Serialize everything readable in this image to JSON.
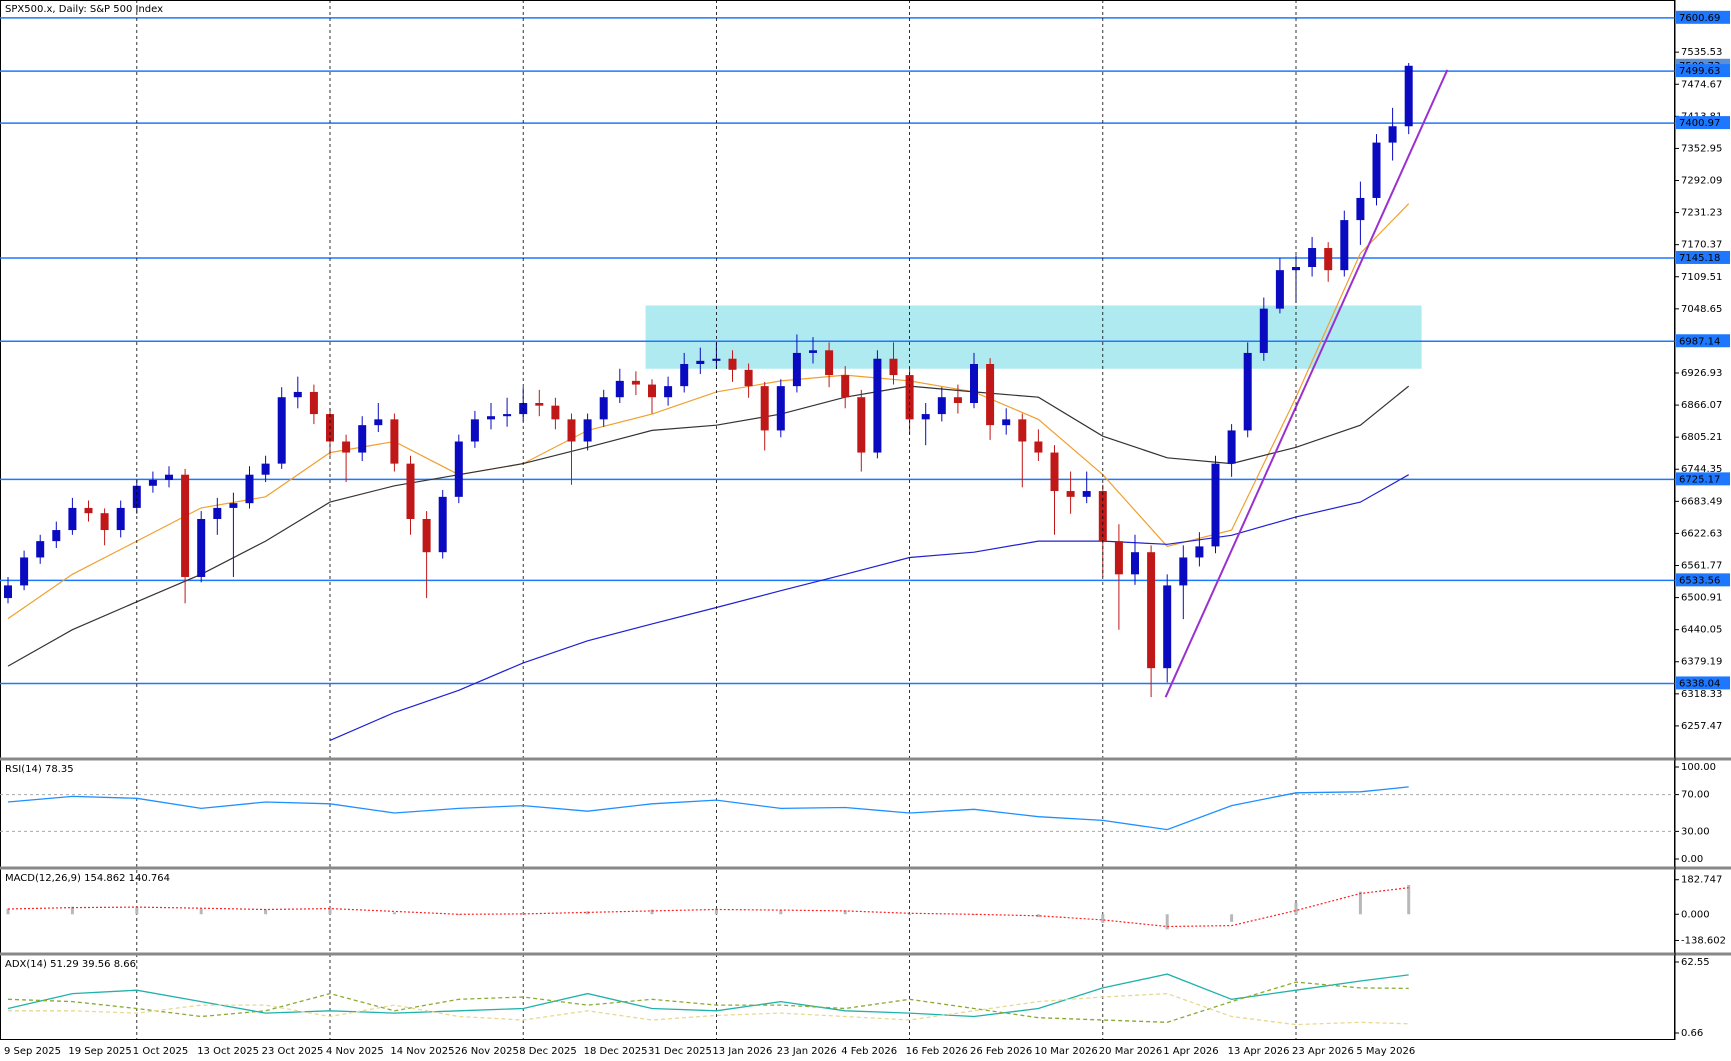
{
  "chart_data": [
    {
      "type": "candlestick",
      "title": "SPX500.x, Daily:  S&P 500 Index",
      "categories": [
        "9 Sep 2025",
        null,
        null,
        null,
        "19 Sep 2025",
        null,
        null,
        null,
        "1 Oct 2025",
        null,
        null,
        null,
        "13 Oct 2025",
        null,
        null,
        null,
        "23 Oct 2025",
        null,
        null,
        null,
        "4 Nov 2025",
        null,
        null,
        null,
        "14 Nov 2025",
        null,
        null,
        null,
        "26 Nov 2025",
        null,
        null,
        null,
        "8 Dec 2025",
        null,
        null,
        null,
        "18 Dec 2025",
        null,
        null,
        null,
        "31 Dec 2025",
        null,
        null,
        null,
        "13 Jan 2026",
        null,
        null,
        null,
        "23 Jan 2026",
        null,
        null,
        null,
        "4 Feb 2026",
        null,
        null,
        null,
        "16 Feb 2026",
        null,
        null,
        null,
        "26 Feb 2026",
        null,
        null,
        null,
        "10 Mar 2026",
        null,
        null,
        null,
        "20 Mar 2026",
        null,
        null,
        null,
        "1 Apr 2026",
        null,
        null,
        null,
        "13 Apr 2026",
        null,
        null,
        null,
        "23 Apr 2026",
        null,
        null,
        null,
        "5 May 2026",
        null,
        null,
        null
      ],
      "ohlc": [
        [
          6500,
          6540,
          6490,
          6524
        ],
        [
          6524,
          6590,
          6515,
          6577
        ],
        [
          6577,
          6620,
          6565,
          6608
        ],
        [
          6608,
          6645,
          6595,
          6629
        ],
        [
          6629,
          6690,
          6620,
          6671
        ],
        [
          6671,
          6685,
          6645,
          6661
        ],
        [
          6661,
          6670,
          6600,
          6629
        ],
        [
          6629,
          6685,
          6615,
          6671
        ],
        [
          6671,
          6725,
          6660,
          6713
        ],
        [
          6713,
          6740,
          6700,
          6724
        ],
        [
          6724,
          6750,
          6710,
          6734
        ],
        [
          6734,
          6745,
          6490,
          6540
        ],
        [
          6540,
          6665,
          6530,
          6650
        ],
        [
          6650,
          6690,
          6620,
          6671
        ],
        [
          6671,
          6700,
          6540,
          6680
        ],
        [
          6680,
          6750,
          6670,
          6734
        ],
        [
          6734,
          6770,
          6720,
          6755
        ],
        [
          6755,
          6900,
          6745,
          6881
        ],
        [
          6881,
          6920,
          6860,
          6891
        ],
        [
          6891,
          6905,
          6830,
          6849
        ],
        [
          6849,
          6860,
          6770,
          6797
        ],
        [
          6797,
          6810,
          6720,
          6776
        ],
        [
          6776,
          6845,
          6760,
          6828
        ],
        [
          6828,
          6870,
          6815,
          6839
        ],
        [
          6839,
          6850,
          6740,
          6755
        ],
        [
          6755,
          6770,
          6620,
          6650
        ],
        [
          6650,
          6665,
          6500,
          6587
        ],
        [
          6587,
          6705,
          6575,
          6692
        ],
        [
          6692,
          6810,
          6680,
          6797
        ],
        [
          6797,
          6855,
          6785,
          6839
        ],
        [
          6839,
          6870,
          6820,
          6845
        ],
        [
          6845,
          6880,
          6825,
          6849
        ],
        [
          6849,
          6900,
          6835,
          6870
        ],
        [
          6870,
          6895,
          6845,
          6865
        ],
        [
          6865,
          6880,
          6820,
          6839
        ],
        [
          6839,
          6850,
          6715,
          6797
        ],
        [
          6797,
          6850,
          6780,
          6839
        ],
        [
          6839,
          6895,
          6825,
          6881
        ],
        [
          6881,
          6935,
          6870,
          6912
        ],
        [
          6912,
          6930,
          6885,
          6905
        ],
        [
          6905,
          6915,
          6850,
          6881
        ],
        [
          6881,
          6920,
          6865,
          6902
        ],
        [
          6902,
          6965,
          6890,
          6944
        ],
        [
          6944,
          6975,
          6925,
          6950
        ],
        [
          6950,
          6985,
          6935,
          6954
        ],
        [
          6954,
          6970,
          6910,
          6933
        ],
        [
          6933,
          6945,
          6880,
          6902
        ],
        [
          6902,
          6910,
          6780,
          6818
        ],
        [
          6818,
          6915,
          6805,
          6902
        ],
        [
          6902,
          7000,
          6890,
          6965
        ],
        [
          6965,
          6995,
          6945,
          6970
        ],
        [
          6970,
          6985,
          6900,
          6923
        ],
        [
          6923,
          6940,
          6860,
          6881
        ],
        [
          6881,
          6895,
          6740,
          6776
        ],
        [
          6776,
          6970,
          6765,
          6954
        ],
        [
          6954,
          6985,
          6905,
          6923
        ],
        [
          6923,
          6935,
          6810,
          6839
        ],
        [
          6839,
          6870,
          6790,
          6849
        ],
        [
          6849,
          6900,
          6835,
          6881
        ],
        [
          6881,
          6905,
          6850,
          6870
        ],
        [
          6870,
          6965,
          6860,
          6944
        ],
        [
          6944,
          6955,
          6800,
          6828
        ],
        [
          6828,
          6860,
          6810,
          6839
        ],
        [
          6839,
          6850,
          6710,
          6797
        ],
        [
          6797,
          6820,
          6760,
          6776
        ],
        [
          6776,
          6790,
          6620,
          6703
        ],
        [
          6703,
          6740,
          6660,
          6692
        ],
        [
          6692,
          6740,
          6680,
          6703
        ],
        [
          6703,
          6715,
          6540,
          6608
        ],
        [
          6608,
          6640,
          6440,
          6545
        ],
        [
          6545,
          6620,
          6525,
          6587
        ],
        [
          6587,
          6600,
          6312,
          6367
        ],
        [
          6367,
          6545,
          6340,
          6524
        ],
        [
          6524,
          6600,
          6460,
          6577
        ],
        [
          6577,
          6625,
          6560,
          6598
        ],
        [
          6598,
          6770,
          6585,
          6755
        ],
        [
          6755,
          6830,
          6730,
          6818
        ],
        [
          6818,
          6985,
          6805,
          6965
        ],
        [
          6965,
          7070,
          6950,
          7049
        ],
        [
          7049,
          7145,
          7040,
          7122
        ],
        [
          7122,
          7150,
          7060,
          7128
        ],
        [
          7128,
          7185,
          7110,
          7164
        ],
        [
          7164,
          7175,
          7100,
          7122
        ],
        [
          7122,
          7235,
          7110,
          7217
        ],
        [
          7217,
          7290,
          7170,
          7259
        ],
        [
          7259,
          7380,
          7245,
          7364
        ],
        [
          7364,
          7430,
          7330,
          7395
        ],
        [
          7395,
          7515,
          7380,
          7509.73
        ]
      ],
      "up_color": "#0a0ac0",
      "down_color": "#c01818",
      "ylim": [
        6196.6,
        7634.5
      ],
      "yticks": [
        7535.53,
        7474.67,
        7413.81,
        7352.95,
        7292.09,
        7231.23,
        7170.37,
        7109.51,
        7048.65,
        6926.93,
        6866.07,
        6805.21,
        6744.35,
        6683.49,
        6622.63,
        6561.77,
        6500.91,
        6440.05,
        6379.19,
        6318.33,
        6257.47
      ],
      "levels": {
        "values": [
          7600.69,
          7499.63,
          7400.97,
          7145.18,
          6987.14,
          6725.17,
          6533.56,
          6338.04
        ],
        "color": "#1e78ff"
      },
      "last_price": 7509.73,
      "zone": {
        "x": [
          39.6,
          87.8
        ],
        "y": [
          6935,
          7055
        ],
        "color": "#aeeaf0"
      },
      "trendline": {
        "x": [
          71.9,
          89.4
        ],
        "y": [
          6312,
          7502
        ],
        "color": "#9b30d0"
      },
      "overlays": [
        {
          "color": "#f0a030",
          "x": [
            0,
            4,
            8,
            12,
            16,
            20,
            24,
            28,
            32,
            36,
            40,
            44,
            48,
            52,
            56,
            60,
            64,
            68,
            72,
            76,
            80,
            84,
            87
          ],
          "values": [
            6461,
            6545,
            6608,
            6671,
            6692,
            6776,
            6797,
            6734,
            6755,
            6818,
            6849,
            6891,
            6912,
            6923,
            6912,
            6891,
            6839,
            6734,
            6598,
            6629,
            6881,
            7154,
            7248
          ]
        },
        {
          "color": "#333333",
          "x": [
            0,
            4,
            8,
            12,
            16,
            20,
            24,
            28,
            32,
            36,
            40,
            44,
            48,
            52,
            56,
            60,
            64,
            68,
            72,
            76,
            80,
            84,
            87
          ],
          "values": [
            6371,
            6440,
            6493,
            6545,
            6608,
            6682,
            6713,
            6734,
            6755,
            6786,
            6818,
            6828,
            6849,
            6881,
            6902,
            6891,
            6881,
            6807,
            6766,
            6755,
            6786,
            6828,
            6902
          ]
        },
        {
          "color": "#2020d0",
          "x": [
            0,
            4,
            8,
            12,
            16,
            20,
            24,
            28,
            32,
            36,
            40,
            44,
            48,
            52,
            56,
            60,
            64,
            68,
            72,
            76,
            80,
            84,
            87
          ],
          "values": [
            null,
            null,
            null,
            null,
            null,
            6230,
            6283,
            6325,
            6377,
            6419,
            6451,
            6482,
            6514,
            6545,
            6577,
            6587,
            6608,
            6608,
            6602,
            6619,
            6654,
            6682,
            6734
          ]
        }
      ]
    },
    {
      "type": "line",
      "title": "RSI(14) 78.35",
      "x": [
        0,
        4,
        8,
        12,
        16,
        20,
        24,
        28,
        32,
        36,
        40,
        44,
        48,
        52,
        56,
        60,
        64,
        68,
        72,
        76,
        80,
        84,
        87
      ],
      "series": [
        {
          "color": "#1e90ff",
          "values": [
            62,
            68,
            66,
            55,
            62,
            60,
            50,
            55,
            58,
            52,
            60,
            64,
            55,
            56,
            50,
            54,
            46,
            42,
            32,
            58,
            72,
            73,
            78.35
          ]
        }
      ],
      "ylim": [
        0,
        100
      ],
      "yticks": [
        {
          "value": 100,
          "label": "100.00"
        },
        {
          "value": 70,
          "label": "70.00"
        },
        {
          "value": 30,
          "label": "30.00"
        },
        {
          "value": 0,
          "label": "0.00"
        }
      ]
    },
    {
      "type": "macd",
      "title": "MACD(12,26,9) 154.862 140.764",
      "x": [
        0,
        4,
        8,
        12,
        16,
        20,
        24,
        28,
        32,
        36,
        40,
        44,
        48,
        52,
        56,
        60,
        64,
        68,
        72,
        76,
        80,
        84,
        87
      ],
      "histogram": {
        "color": "#b8b8b8",
        "values": [
          30,
          40,
          40,
          30,
          25,
          35,
          10,
          -5,
          5,
          15,
          25,
          30,
          20,
          20,
          -5,
          -5,
          -15,
          -45,
          -80,
          -40,
          60,
          120,
          154.862
        ]
      },
      "signal": {
        "color": "#ff2020",
        "values": [
          28,
          35,
          38,
          32,
          25,
          30,
          15,
          0,
          2,
          10,
          18,
          25,
          22,
          18,
          5,
          0,
          -8,
          -30,
          -65,
          -60,
          20,
          110,
          140.764
        ]
      },
      "ylim": [
        -162.6,
        202.4
      ],
      "yticks": [
        182.747,
        {
          "value": 0,
          "label": "0.000"
        },
        -138.602
      ]
    },
    {
      "type": "line",
      "title": "ADX(14) 51.29 39.56 8.66",
      "x": [
        0,
        4,
        8,
        12,
        16,
        20,
        24,
        28,
        32,
        36,
        40,
        44,
        48,
        52,
        56,
        60,
        64,
        68,
        72,
        76,
        80,
        84,
        87
      ],
      "series": [
        {
          "color": "#20b2aa",
          "dashed": false,
          "values": [
            22,
            35,
            38,
            28,
            18,
            20,
            18,
            20,
            22,
            35,
            22,
            20,
            28,
            20,
            18,
            15,
            22,
            40,
            52,
            30,
            38,
            46,
            51.29
          ]
        },
        {
          "color": "#8aaa30",
          "dashed": true,
          "values": [
            30,
            28,
            22,
            15,
            20,
            35,
            20,
            30,
            32,
            25,
            30,
            25,
            25,
            22,
            30,
            22,
            14,
            12,
            10,
            28,
            45,
            40,
            39.56
          ]
        },
        {
          "color": "#e8d890",
          "dashed": true,
          "values": [
            20,
            20,
            18,
            25,
            25,
            15,
            25,
            15,
            12,
            20,
            12,
            16,
            18,
            15,
            12,
            20,
            28,
            32,
            35,
            15,
            8,
            10,
            8.66
          ]
        }
      ],
      "ylim": [
        0.66,
        62.55
      ],
      "yticks": [
        62.55,
        0.66
      ]
    }
  ]
}
